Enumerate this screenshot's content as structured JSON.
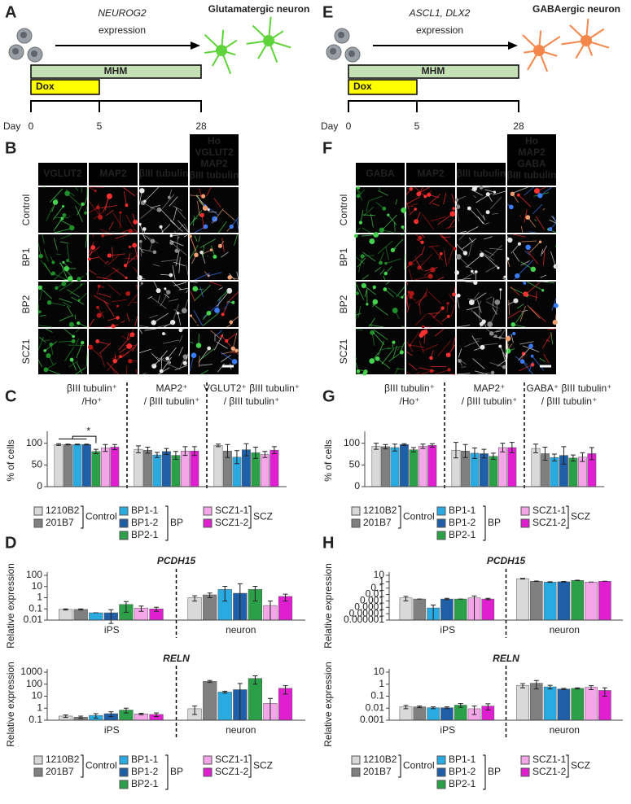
{
  "panels": {
    "A": {
      "label": "A",
      "gene": "NEUROG2",
      "expression": "expression",
      "target": "Glutamatergic neuron",
      "mhm": "MHM",
      "dox": "Dox",
      "day": "Day",
      "days": [
        0,
        5,
        28
      ],
      "neuron_color": "#5fd33a"
    },
    "E": {
      "label": "E",
      "gene": "ASCL1, DLX2",
      "expression": "expression",
      "target": "GABAergic neuron",
      "mhm": "MHM",
      "dox": "Dox",
      "day": "Day",
      "days": [
        0,
        5,
        28
      ],
      "neuron_color": "#f5874a"
    },
    "B": {
      "label": "B",
      "headers": [
        "VGLUT2",
        "MAP2",
        "βIII tubulin"
      ],
      "header_colors": [
        "#2ecc40",
        "#ff2a2a",
        "#ffffff"
      ],
      "merge": [
        "Ho",
        "VGLUT2",
        "MAP2",
        "βIII tubulin"
      ],
      "merge_colors": [
        "#3aa8ff",
        "#2ecc40",
        "#ff2a2a",
        "#ffffff"
      ],
      "rows": [
        "Control",
        "BP1",
        "BP2",
        "SCZ1"
      ]
    },
    "F": {
      "label": "F",
      "headers": [
        "GABA",
        "MAP2",
        "βIII tubulin"
      ],
      "header_colors": [
        "#2ecc40",
        "#ff2a2a",
        "#ffffff"
      ],
      "merge": [
        "Ho",
        "MAP2",
        "GABA",
        "βIII tubulin"
      ],
      "merge_colors": [
        "#3aa8ff",
        "#ff2a2a",
        "#2ecc40",
        "#ffffff"
      ],
      "rows": [
        "Control",
        "BP1",
        "BP2",
        "SCZ1"
      ]
    }
  },
  "chart_data": [
    {
      "type": "bar",
      "panel": "C",
      "ylabel": "% of cells",
      "categories": [
        [
          "βIII tubulin⁺",
          "/Ho⁺"
        ],
        [
          "MAP2⁺",
          "/ βIII tubulin⁺"
        ],
        [
          "VGLUT2⁺ βIII tubulin⁺",
          "/ βIII tubulin⁺"
        ]
      ],
      "ylim": [
        0,
        120
      ],
      "yticks": [
        0,
        50,
        100
      ],
      "annotation": "*",
      "legend_groups": [
        "Control",
        "BP",
        "SCZ"
      ],
      "series": [
        {
          "name": "1210B2",
          "color": "#d9d9d9",
          "values": [
            97,
            86,
            95
          ],
          "errors": [
            2,
            8,
            3
          ]
        },
        {
          "name": "201B7",
          "color": "#808080",
          "values": [
            97,
            84,
            82
          ],
          "errors": [
            1,
            7,
            15
          ]
        },
        {
          "name": "BP1-1",
          "color": "#29abe2",
          "values": [
            97,
            73,
            68
          ],
          "errors": [
            1,
            6,
            15
          ]
        },
        {
          "name": "BP1-2",
          "color": "#1f5fa8",
          "values": [
            97,
            81,
            85
          ],
          "errors": [
            1,
            7,
            14
          ]
        },
        {
          "name": "BP2-1",
          "color": "#2ca048",
          "values": [
            81,
            72,
            78
          ],
          "errors": [
            5,
            9,
            13
          ]
        },
        {
          "name": "SCZ1-1",
          "color": "#f4a6e8",
          "values": [
            89,
            82,
            74
          ],
          "errors": [
            8,
            10,
            7
          ]
        },
        {
          "name": "SCZ1-2",
          "color": "#e020d0",
          "values": [
            91,
            82,
            84
          ],
          "errors": [
            6,
            10,
            8
          ]
        }
      ]
    },
    {
      "type": "bar",
      "panel": "D",
      "title": "PCDH15",
      "ylabel": "Relative expression",
      "log_scale": true,
      "categories": [
        "iPS",
        "neuron"
      ],
      "ylim": [
        0.01,
        100
      ],
      "yticks": [
        0.01,
        0.1,
        1,
        10,
        100
      ],
      "series": [
        {
          "color": "#d9d9d9",
          "values": [
            0.09,
            1
          ],
          "errors": [
            0.01,
            0.5
          ]
        },
        {
          "color": "#808080",
          "values": [
            0.09,
            1.8
          ],
          "errors": [
            0.01,
            0.8
          ]
        },
        {
          "color": "#29abe2",
          "values": [
            0.045,
            5.5
          ],
          "errors": [
            0,
            5
          ]
        },
        {
          "color": "#1f5fa8",
          "values": [
            0.045,
            2.5
          ],
          "errors": [
            0.04,
            15
          ]
        },
        {
          "color": "#2ca048",
          "values": [
            0.25,
            5.5
          ],
          "errors": [
            0.2,
            5
          ]
        },
        {
          "color": "#f4a6e8",
          "values": [
            0.12,
            0.2
          ],
          "errors": [
            0.06,
            0.3
          ]
        },
        {
          "color": "#e020d0",
          "values": [
            0.1,
            1.3
          ],
          "errors": [
            0.04,
            0.8
          ]
        }
      ]
    },
    {
      "type": "bar",
      "title": "RELN",
      "ylabel": "Relative expression",
      "log_scale": true,
      "categories": [
        "iPS",
        "neuron"
      ],
      "ylim": [
        0.1,
        1000
      ],
      "yticks": [
        0.1,
        1,
        10,
        100,
        1000
      ],
      "legend_groups": [
        "Control",
        "BP",
        "SCZ"
      ],
      "series": [
        {
          "name": "1210B2",
          "color": "#d9d9d9",
          "values": [
            0.22,
            0.9
          ],
          "errors": [
            0.05,
            0.6
          ]
        },
        {
          "name": "201B7",
          "color": "#808080",
          "values": [
            0.18,
            170
          ],
          "errors": [
            0.04,
            30
          ]
        },
        {
          "name": "BP1-1",
          "color": "#29abe2",
          "values": [
            0.25,
            22
          ],
          "errors": [
            0.1,
            4
          ]
        },
        {
          "name": "BP1-2",
          "color": "#1f5fa8",
          "values": [
            0.35,
            35
          ],
          "errors": [
            0.15,
            80
          ]
        },
        {
          "name": "BP2-1",
          "color": "#2ca048",
          "values": [
            0.7,
            300
          ],
          "errors": [
            0.3,
            200
          ]
        },
        {
          "name": "SCZ1-1",
          "color": "#f4a6e8",
          "values": [
            0.33,
            2.5
          ],
          "errors": [
            0.05,
            4
          ]
        },
        {
          "name": "SCZ1-2",
          "color": "#e020d0",
          "values": [
            0.3,
            45
          ],
          "errors": [
            0.1,
            30
          ]
        }
      ]
    },
    {
      "type": "bar",
      "panel": "G",
      "ylabel": "% of cells",
      "categories": [
        [
          "βIII tubulin⁺",
          "/Ho⁺"
        ],
        [
          "MAP2⁺",
          "/ βIII tubulin⁺"
        ],
        [
          "GABA⁺ βIII tubulin⁺",
          "/ βIII tubulin⁺"
        ]
      ],
      "ylim": [
        0,
        120
      ],
      "yticks": [
        0,
        50,
        100
      ],
      "legend_groups": [
        "Control",
        "BP",
        "SCZ"
      ],
      "series": [
        {
          "name": "1210B2",
          "color": "#d9d9d9",
          "values": [
            93,
            84,
            88
          ],
          "errors": [
            7,
            18,
            10
          ]
        },
        {
          "name": "201B7",
          "color": "#808080",
          "values": [
            92,
            82,
            76
          ],
          "errors": [
            5,
            15,
            15
          ]
        },
        {
          "name": "BP1-1",
          "color": "#29abe2",
          "values": [
            90,
            77,
            67
          ],
          "errors": [
            8,
            12,
            8
          ]
        },
        {
          "name": "BP1-2",
          "color": "#1f5fa8",
          "values": [
            97,
            76,
            72
          ],
          "errors": [
            2,
            10,
            20
          ]
        },
        {
          "name": "BP2-1",
          "color": "#2ca048",
          "values": [
            85,
            70,
            66
          ],
          "errors": [
            5,
            7,
            7
          ]
        },
        {
          "name": "SCZ1-1",
          "color": "#f4a6e8",
          "values": [
            93,
            90,
            68
          ],
          "errors": [
            5,
            10,
            10
          ]
        },
        {
          "name": "SCZ1-2",
          "color": "#e020d0",
          "values": [
            95,
            90,
            76
          ],
          "errors": [
            4,
            12,
            14
          ]
        }
      ]
    },
    {
      "type": "bar",
      "panel": "H",
      "title": "PCDH15",
      "ylabel": "Relative expression",
      "log_scale": true,
      "categories": [
        "iPS",
        "neuron"
      ],
      "ylim": [
        1e-06,
        10
      ],
      "yticks": [
        1e-06,
        1e-05,
        0.0001,
        0.001,
        0.01,
        0.1,
        1,
        10
      ],
      "series": [
        {
          "color": "#d9d9d9",
          "values": [
            0.003,
            3
          ],
          "errors": [
            0.002,
            0.3
          ]
        },
        {
          "color": "#808080",
          "values": [
            0.002,
            1.2
          ],
          "errors": [
            0,
            0.1
          ]
        },
        {
          "color": "#29abe2",
          "values": [
            8e-05,
            0.9
          ],
          "errors": [
            0.00015,
            0.1
          ]
        },
        {
          "color": "#1f5fa8",
          "values": [
            0.002,
            1
          ],
          "errors": [
            0.0005,
            0.1
          ]
        },
        {
          "color": "#2ca048",
          "values": [
            0.002,
            1.6
          ],
          "errors": [
            0,
            0.1
          ]
        },
        {
          "color": "#f4a6e8",
          "values": [
            0.003,
            0.9
          ],
          "errors": [
            0.003,
            0
          ]
        },
        {
          "color": "#e020d0",
          "values": [
            0.002,
            1.2
          ],
          "errors": [
            0.0005,
            0
          ]
        }
      ]
    },
    {
      "type": "bar",
      "title": "RELN",
      "ylabel": "Relative expression",
      "log_scale": true,
      "categories": [
        "iPS",
        "neuron"
      ],
      "ylim": [
        0.001,
        10
      ],
      "yticks": [
        0.001,
        0.01,
        0.1,
        1,
        10
      ],
      "legend_groups": [
        "Control",
        "BP",
        "SCZ"
      ],
      "series": [
        {
          "name": "1210B2",
          "color": "#d9d9d9",
          "values": [
            0.013,
            0.8
          ],
          "errors": [
            0.004,
            0.3
          ]
        },
        {
          "name": "201B7",
          "color": "#808080",
          "values": [
            0.013,
            1.2
          ],
          "errors": [
            0.002,
            0.8
          ]
        },
        {
          "name": "BP1-1",
          "color": "#29abe2",
          "values": [
            0.011,
            0.6
          ],
          "errors": [
            0.002,
            0.2
          ]
        },
        {
          "name": "BP1-2",
          "color": "#1f5fa8",
          "values": [
            0.011,
            0.4
          ],
          "errors": [
            0.002,
            0.05
          ]
        },
        {
          "name": "BP2-1",
          "color": "#2ca048",
          "values": [
            0.018,
            0.45
          ],
          "errors": [
            0.006,
            0.05
          ]
        },
        {
          "name": "SCZ1-1",
          "color": "#f4a6e8",
          "values": [
            0.009,
            0.55
          ],
          "errors": [
            0.006,
            0.2
          ]
        },
        {
          "name": "SCZ1-2",
          "color": "#e020d0",
          "values": [
            0.015,
            0.3
          ],
          "errors": [
            0.008,
            0.2
          ]
        }
      ]
    }
  ]
}
